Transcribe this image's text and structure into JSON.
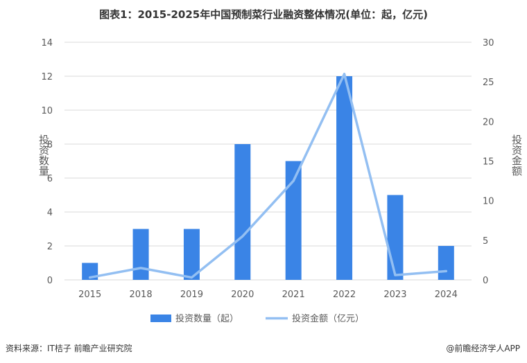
{
  "header": {
    "title": "图表1：2015-2025年中国预制菜行业融资整体情况(单位：起，亿元)"
  },
  "footer": {
    "source": "资料来源：IT桔子 前瞻产业研究院",
    "brand": "@前瞻经济学人APP"
  },
  "colors": {
    "bar": "#3a84e6",
    "line": "#93bff2",
    "grid": "#d9d9d9"
  },
  "chart_data": {
    "type": "bar",
    "categories": [
      "2015",
      "2018",
      "2019",
      "2020",
      "2021",
      "2022",
      "2023",
      "2024"
    ],
    "series": [
      {
        "name": "投资数量（起）",
        "type": "bar",
        "axis": "left",
        "values": [
          1,
          3,
          3,
          8,
          7,
          12,
          5,
          2
        ]
      },
      {
        "name": "投资金额（亿元）",
        "type": "line",
        "axis": "right",
        "values": [
          0.3,
          1.5,
          0.3,
          5.5,
          12.5,
          26,
          0.6,
          1.1
        ]
      }
    ],
    "ylabel": "投资数量",
    "ylabel_right": "投资金额",
    "ylim": [
      0,
      14
    ],
    "ylim_right": [
      0,
      30
    ],
    "yticks": [
      "0",
      "2",
      "4",
      "6",
      "8",
      "10",
      "12",
      "14"
    ],
    "yticks_right": [
      "0",
      "5",
      "10",
      "15",
      "20",
      "25",
      "30"
    ],
    "grid": true,
    "legend_position": "bottom"
  }
}
